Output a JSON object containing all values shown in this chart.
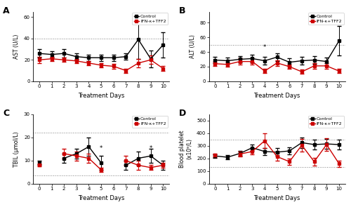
{
  "days": [
    0,
    1,
    2,
    3,
    4,
    5,
    6,
    7,
    8,
    9,
    10
  ],
  "ast_control_mean": [
    26,
    25,
    26,
    23,
    22,
    22,
    22,
    23,
    39,
    21,
    34
  ],
  "ast_control_err": [
    4,
    3,
    4,
    3,
    3,
    3,
    3,
    3,
    18,
    8,
    12
  ],
  "ast_ifn_mean": [
    20,
    21,
    20,
    19,
    17,
    15,
    14,
    10,
    17,
    20,
    12
  ],
  "ast_ifn_err": [
    3,
    2,
    2,
    2,
    2,
    2,
    2,
    2,
    4,
    4,
    2
  ],
  "ast_ylim": [
    0,
    65
  ],
  "ast_yticks": [
    0,
    20,
    40,
    60
  ],
  "ast_ylabel": "AST (U/L)",
  "ast_hline": 40,
  "alt_control_mean": [
    29,
    28,
    30,
    31,
    28,
    33,
    26,
    28,
    29,
    27,
    55
  ],
  "alt_control_err": [
    4,
    4,
    4,
    5,
    5,
    5,
    5,
    5,
    5,
    5,
    20
  ],
  "alt_ifn_mean": [
    24,
    23,
    27,
    27,
    14,
    25,
    20,
    13,
    21,
    21,
    14
  ],
  "alt_ifn_err": [
    3,
    3,
    4,
    4,
    3,
    4,
    3,
    3,
    4,
    4,
    3
  ],
  "alt_ylim": [
    0,
    95
  ],
  "alt_yticks": [
    0,
    20,
    40,
    60,
    80
  ],
  "alt_ylabel": "ALT (U/L)",
  "alt_hline": 50,
  "alt_star_day": 4,
  "alt_star_val": 42,
  "tbil_control_mean": [
    9,
    null,
    11,
    13,
    16,
    9,
    null,
    8,
    11,
    12,
    8
  ],
  "tbil_control_err": [
    1,
    null,
    2,
    2,
    4,
    3,
    null,
    2,
    3,
    3,
    2
  ],
  "tbil_ifn_mean": [
    8,
    null,
    13,
    12,
    11,
    6,
    null,
    10,
    8,
    7,
    8
  ],
  "tbil_ifn_err": [
    0.5,
    null,
    2,
    2,
    2,
    1,
    null,
    2,
    2,
    1,
    1
  ],
  "tbil_ylim": [
    0,
    30
  ],
  "tbil_yticks": [
    0,
    10,
    20,
    30
  ],
  "tbil_ylabel": "TBIL (μmol/L)",
  "tbil_hline1": 22,
  "tbil_hline2": 3.5,
  "tbil_star_days": [
    5,
    9
  ],
  "tbil_star_vals": [
    14,
    14
  ],
  "plt_control_mean": [
    220,
    210,
    240,
    285,
    255,
    250,
    260,
    325,
    310,
    315,
    310
  ],
  "plt_control_err": [
    15,
    15,
    20,
    25,
    30,
    30,
    30,
    40,
    40,
    40,
    40
  ],
  "plt_ifn_mean": [
    225,
    null,
    235,
    255,
    340,
    215,
    175,
    305,
    175,
    310,
    160
  ],
  "plt_ifn_err": [
    15,
    null,
    20,
    25,
    60,
    30,
    25,
    50,
    30,
    50,
    25
  ],
  "plt_ylim": [
    0,
    550
  ],
  "plt_yticks": [
    0,
    100,
    200,
    300,
    400,
    500
  ],
  "plt_ylabel": "Blood platelet\n(x10⁹/L)",
  "plt_hline1": 350,
  "plt_hline2": 130,
  "control_color": "#000000",
  "ifn_color": "#cc0000",
  "marker_size": 3.5,
  "linewidth": 1.0,
  "capsize": 2,
  "elinewidth": 0.7,
  "panel_labels": [
    "A",
    "B",
    "C",
    "D"
  ],
  "legend_control": "Control",
  "legend_ifn": "IFN-κ+TFF2",
  "xlabel": "Treatment Days"
}
